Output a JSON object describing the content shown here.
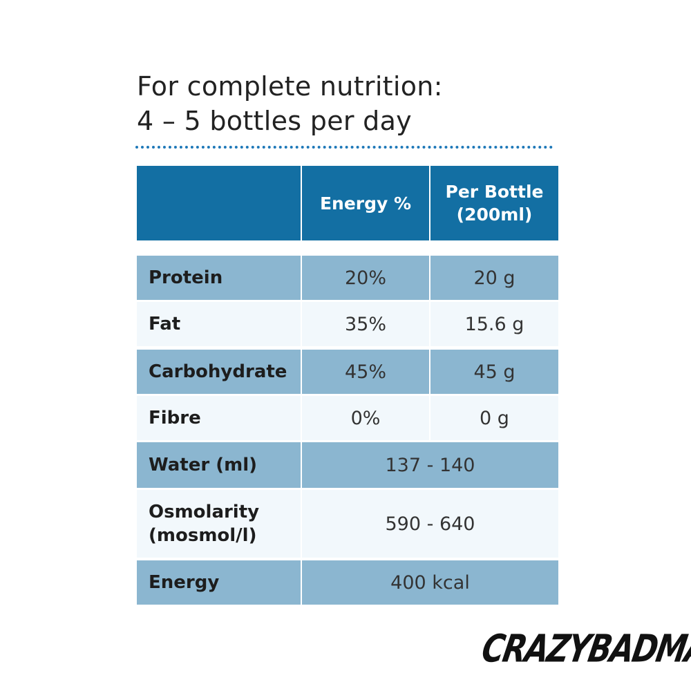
{
  "heading": {
    "line1": "For complete nutrition:",
    "line2": "4 – 5 bottles per day"
  },
  "table": {
    "headers": [
      "",
      "Energy %",
      "Per Bottle (200ml)"
    ],
    "rows": [
      {
        "label": "Protein",
        "energy_pct": "20%",
        "per_bottle": "20 g"
      },
      {
        "label": "Fat",
        "energy_pct": "35%",
        "per_bottle": "15.6 g"
      },
      {
        "label": "Carbohydrate",
        "energy_pct": "45%",
        "per_bottle": "45 g"
      },
      {
        "label": "Fibre",
        "energy_pct": "0%",
        "per_bottle": "0 g"
      },
      {
        "label": "Water (ml)",
        "value": "137 - 140"
      },
      {
        "label_line1": "Osmolarity",
        "label_line2": "(mosmol/l)",
        "value": "590 - 640"
      },
      {
        "label": "Energy",
        "value": "400 kcal"
      }
    ]
  },
  "brand": "CRAZYBADMAN",
  "colors": {
    "header_bg": "#136fa3",
    "row_dark": "#8bb6d0",
    "row_light": "#f2f8fc",
    "dotted_rule": "#1e78b8"
  }
}
